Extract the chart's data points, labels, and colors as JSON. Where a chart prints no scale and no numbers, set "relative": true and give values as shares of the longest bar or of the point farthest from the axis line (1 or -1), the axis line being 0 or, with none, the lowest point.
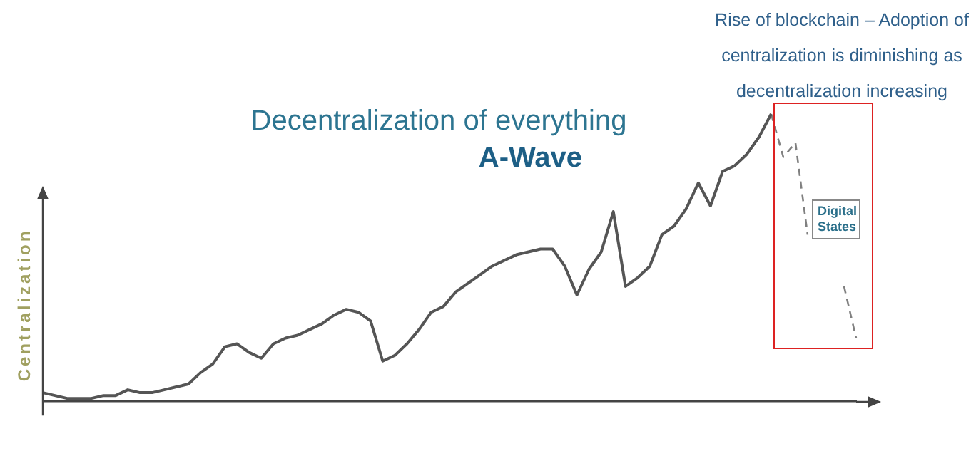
{
  "chart_data": {
    "type": "line",
    "relative": true,
    "title": "Decentralization of everything",
    "subtitle": "A-Wave",
    "ylabel": "Centralization",
    "annotations": [
      "Rise of blockchain – Adoption of centralization is diminishing as decentralization increasing",
      "Digital States"
    ],
    "categories": [
      null,
      null,
      null,
      null,
      null,
      null,
      null,
      null,
      null,
      null,
      null,
      null,
      null,
      null,
      null,
      null,
      null,
      null,
      null,
      null,
      null,
      null,
      null,
      null,
      null,
      null,
      null,
      null,
      null,
      null,
      null,
      null,
      null,
      null,
      null,
      null,
      null,
      null,
      null,
      null,
      null,
      null,
      null,
      null,
      null,
      null,
      null,
      null,
      null,
      null,
      null,
      null,
      null,
      null,
      null,
      null,
      null,
      null,
      null,
      null,
      null,
      null,
      null,
      null,
      null,
      null,
      null,
      null
    ],
    "marker": "none",
    "series": [
      {
        "color": "#555555",
        "line_style": "solid",
        "values": [
          0.03,
          0.02,
          0.01,
          0.01,
          0.01,
          0.02,
          0.02,
          0.04,
          0.03,
          0.03,
          0.04,
          0.05,
          0.06,
          0.1,
          0.13,
          0.19,
          0.2,
          0.17,
          0.15,
          0.2,
          0.22,
          0.23,
          0.25,
          0.27,
          0.3,
          0.32,
          0.31,
          0.28,
          0.14,
          0.16,
          0.2,
          0.25,
          0.31,
          0.33,
          0.38,
          0.41,
          0.44,
          0.47,
          0.49,
          0.51,
          0.52,
          0.53,
          0.53,
          0.47,
          0.37,
          0.46,
          0.52,
          0.66,
          0.4,
          0.43,
          0.47,
          0.58,
          0.61,
          0.67,
          0.76,
          0.68,
          0.8,
          0.82,
          0.86,
          0.92,
          1,
          null,
          null,
          null,
          null,
          null,
          null,
          null
        ]
      },
      {
        "color": "#808080",
        "line_style": "dashed",
        "values": [
          null,
          null,
          null,
          null,
          null,
          null,
          null,
          null,
          null,
          null,
          null,
          null,
          null,
          null,
          null,
          null,
          null,
          null,
          null,
          null,
          null,
          null,
          null,
          null,
          null,
          null,
          null,
          null,
          null,
          null,
          null,
          null,
          null,
          null,
          null,
          null,
          null,
          null,
          null,
          null,
          null,
          null,
          null,
          null,
          null,
          null,
          null,
          null,
          null,
          null,
          null,
          null,
          null,
          null,
          null,
          null,
          null,
          null,
          null,
          null,
          1,
          0.85,
          0.9,
          0.58,
          null,
          null,
          0.4,
          0.22
        ]
      }
    ]
  }
}
